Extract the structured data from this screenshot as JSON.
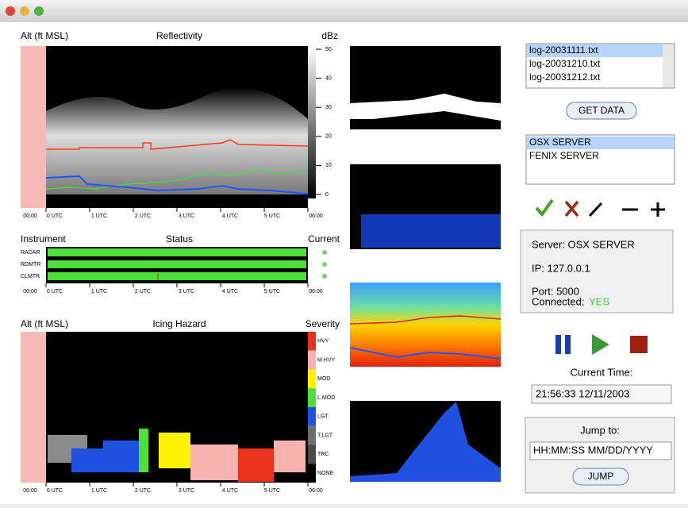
{
  "reflectivity": {
    "y_label": "Alt (ft MSL)",
    "title": "Reflectivity",
    "unit": "dBz",
    "scale": [
      50,
      40,
      30,
      20,
      10,
      0
    ]
  },
  "time_axis": [
    "00:00",
    "0 UTC",
    "1 UTC",
    "2 UTC",
    "3 UTC",
    "4 UTC",
    "5 UTC",
    "06:00"
  ],
  "status": {
    "left": "Instrument",
    "title": "Status",
    "right": "Current",
    "instruments": [
      "RADAR",
      "RDMTR",
      "CLMTR"
    ]
  },
  "icing": {
    "y_label": "Alt (ft MSL)",
    "title": "Icing Hazard",
    "right": "Severity",
    "levels": [
      {
        "label": "HVY",
        "color": "#e8321c"
      },
      {
        "label": "M.HVY",
        "color": "#f7b3b0"
      },
      {
        "label": "MOD",
        "color": "#fff200"
      },
      {
        "label": "L.MOD",
        "color": "#4ee03a"
      },
      {
        "label": "LGT",
        "color": "#1f50e0"
      },
      {
        "label": "T.LGT",
        "color": "#6d6d6d"
      },
      {
        "label": "TRC",
        "color": "#4a4a4a"
      },
      {
        "label": "NONE",
        "color": "#000000"
      }
    ]
  },
  "files": [
    "log-20031111.txt",
    "log-20031210.txt",
    "log-20031212.txt"
  ],
  "get_data": "GET DATA",
  "servers": [
    "OSX SERVER",
    "FENIX SERVER"
  ],
  "info": {
    "server": "Server: OSX SERVER",
    "ip": "IP: 127.0.0.1",
    "port": "Port: 5000",
    "connected_label": "Connected:",
    "connected_value": "YES"
  },
  "current_time": {
    "label": "Current Time:",
    "value": "21:56:33 12/11/2003"
  },
  "jump": {
    "label": "Jump to:",
    "placeholder": "HH:MM:SS MM/DD/YYYY",
    "button": "JUMP"
  }
}
